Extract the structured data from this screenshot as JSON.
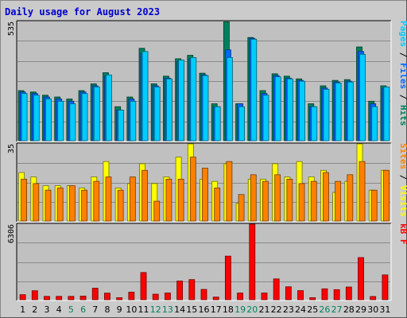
{
  "chart_data": [
    {
      "type": "bar",
      "title": "Daily usage for August 2023",
      "panel": "top",
      "y_max_label": "535",
      "categories": [
        "1",
        "2",
        "3",
        "4",
        "5",
        "6",
        "7",
        "8",
        "9",
        "10",
        "11",
        "12",
        "13",
        "14",
        "15",
        "16",
        "17",
        "18",
        "19",
        "20",
        "21",
        "22",
        "23",
        "24",
        "25",
        "26",
        "27",
        "28",
        "29",
        "30",
        "31"
      ],
      "weekend_days": [
        "5",
        "6",
        "12",
        "13",
        "19",
        "20",
        "26",
        "27"
      ],
      "scale": "log",
      "legend": [
        {
          "label": "Pages",
          "color": "#00ccff"
        },
        {
          "label": "Files",
          "color": "#0066ff"
        },
        {
          "label": "Hits",
          "color": "#00805c"
        }
      ],
      "series": [
        {
          "name": "Hits",
          "color": "#00805c",
          "values": [
            14,
            13,
            11,
            10,
            9,
            14,
            20,
            36,
            6,
            10,
            130,
            20,
            30,
            75,
            90,
            35,
            7,
            525,
            7,
            230,
            14,
            34,
            30,
            26,
            7,
            18,
            24,
            25,
            140,
            8,
            18
          ]
        },
        {
          "name": "Files",
          "color": "#0066ff",
          "values": [
            13,
            12,
            10,
            9,
            8,
            13,
            18,
            30,
            5,
            9,
            100,
            18,
            27,
            65,
            75,
            32,
            6,
            120,
            7,
            220,
            12,
            31,
            27,
            24,
            6,
            16,
            22,
            23,
            110,
            7,
            16
          ]
        },
        {
          "name": "Pages",
          "color": "#00ccff",
          "values": [
            12,
            11,
            9,
            8,
            7,
            12,
            17,
            32,
            5,
            8,
            110,
            17,
            26,
            70,
            80,
            31,
            6,
            80,
            6,
            210,
            11,
            29,
            26,
            23,
            6,
            15,
            21,
            22,
            95,
            6,
            17
          ]
        }
      ]
    },
    {
      "type": "bar",
      "panel": "middle",
      "y_max_label": "35",
      "categories": [
        "1",
        "2",
        "3",
        "4",
        "5",
        "6",
        "7",
        "8",
        "9",
        "10",
        "11",
        "12",
        "13",
        "14",
        "15",
        "16",
        "17",
        "18",
        "19",
        "20",
        "21",
        "22",
        "23",
        "24",
        "25",
        "26",
        "27",
        "28",
        "29",
        "30",
        "31"
      ],
      "legend": [
        {
          "label": "Sites",
          "color": "#ff8000"
        },
        {
          "label": "Visits",
          "color": "#ffff00"
        }
      ],
      "series": [
        {
          "name": "Visits",
          "color": "#ffff00",
          "values": [
            22,
            20,
            16,
            16,
            16,
            15,
            20,
            27,
            15,
            17,
            26,
            17,
            20,
            29,
            35,
            19,
            18,
            26,
            8,
            19,
            19,
            26,
            20,
            27,
            20,
            23,
            13,
            18,
            35,
            14,
            23
          ]
        },
        {
          "name": "Sites",
          "color": "#ff8000",
          "values": [
            19,
            17,
            14,
            15,
            16,
            14,
            18,
            20,
            14,
            20,
            23,
            9,
            19,
            19,
            29,
            24,
            15,
            27,
            12,
            21,
            18,
            21,
            19,
            17,
            18,
            22,
            18,
            21,
            27,
            14,
            23
          ]
        }
      ]
    },
    {
      "type": "bar",
      "panel": "bottom",
      "y_max_label": "6306",
      "categories": [
        "1",
        "2",
        "3",
        "4",
        "5",
        "6",
        "7",
        "8",
        "9",
        "10",
        "11",
        "12",
        "13",
        "14",
        "15",
        "16",
        "17",
        "18",
        "19",
        "20",
        "21",
        "22",
        "23",
        "24",
        "25",
        "26",
        "27",
        "28",
        "29",
        "30",
        "31"
      ],
      "legend": [
        {
          "label": "kB F",
          "color": "#ff0000"
        }
      ],
      "series": [
        {
          "name": "kB F",
          "color": "#ff0000",
          "values": [
            420,
            750,
            280,
            280,
            280,
            300,
            960,
            550,
            170,
            630,
            2270,
            460,
            560,
            1560,
            1680,
            860,
            220,
            3640,
            560,
            6306,
            560,
            1740,
            1080,
            760,
            170,
            910,
            840,
            1060,
            3520,
            270,
            2070
          ]
        }
      ]
    }
  ]
}
